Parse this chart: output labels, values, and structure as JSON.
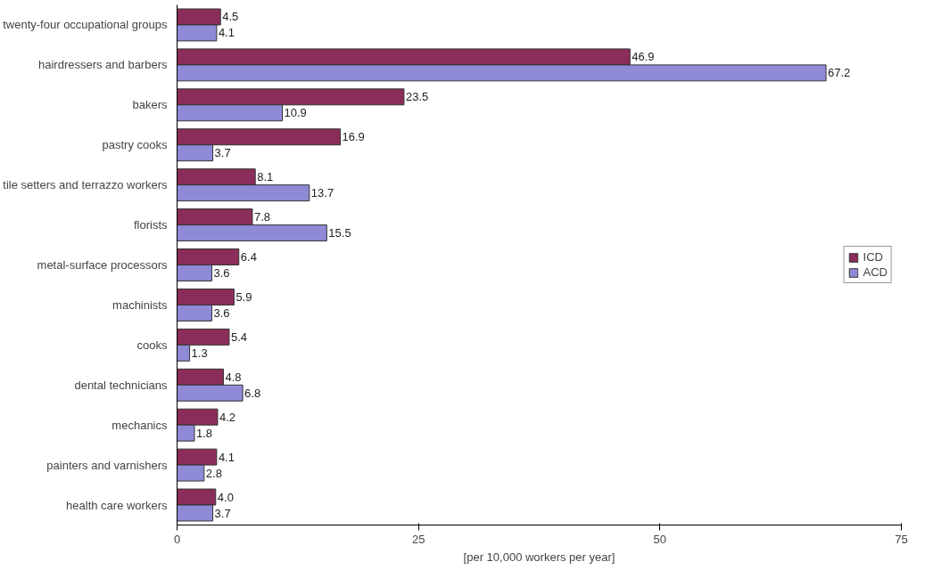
{
  "chart_data": {
    "type": "bar",
    "orientation": "horizontal",
    "xlabel": "[per 10,000 workers per year]",
    "categories": [
      "twenty-four occupational groups",
      "hairdressers and barbers",
      "bakers",
      "pastry cooks",
      "tile setters and terrazzo workers",
      "florists",
      "metal-surface processors",
      "machinists",
      "cooks",
      "dental technicians",
      "mechanics",
      "painters and varnishers",
      "health care workers"
    ],
    "series": [
      {
        "name": "ICD",
        "color": "#8b2d5a",
        "values": [
          4.5,
          46.9,
          23.5,
          16.9,
          8.1,
          7.8,
          6.4,
          5.9,
          5.4,
          4.8,
          4.2,
          4.1,
          4.0
        ],
        "value_labels": [
          "4.5",
          "46.9",
          "23.5",
          "16.9",
          "8.1",
          "7.8",
          "6.4",
          "5.9",
          "5.4",
          "4.8",
          "4.2",
          "4.1",
          "4.0"
        ]
      },
      {
        "name": "ACD",
        "color": "#8f8ad6",
        "values": [
          4.1,
          67.2,
          10.9,
          3.7,
          13.7,
          15.5,
          3.6,
          3.6,
          1.3,
          6.8,
          1.8,
          2.8,
          3.7
        ],
        "value_labels": [
          "4.1",
          "67.2",
          "10.9",
          "3.7",
          "13.7",
          "15.5",
          "3.6",
          "3.6",
          "1.3",
          "6.8",
          "1.8",
          "2.8",
          "3.7"
        ]
      }
    ],
    "xlim": [
      0,
      75
    ],
    "xticks": [
      0,
      25,
      50,
      75
    ],
    "grid": false,
    "legend": "right"
  }
}
